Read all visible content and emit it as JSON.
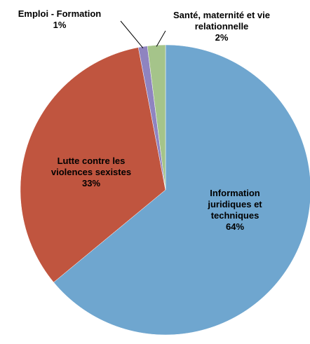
{
  "chart_data": {
    "type": "pie",
    "categories": [
      "Information juridiques et techniques",
      "Lutte contre les violences sexistes",
      "Emploi - Formation",
      "Santé, maternité et vie relationnelle"
    ],
    "values": [
      64,
      33,
      1,
      2
    ],
    "value_labels": [
      "64%",
      "33%",
      "1%",
      "2%"
    ],
    "colors": [
      "#6fa6cf",
      "#c0553f",
      "#8f84c0",
      "#a5c48a"
    ]
  }
}
